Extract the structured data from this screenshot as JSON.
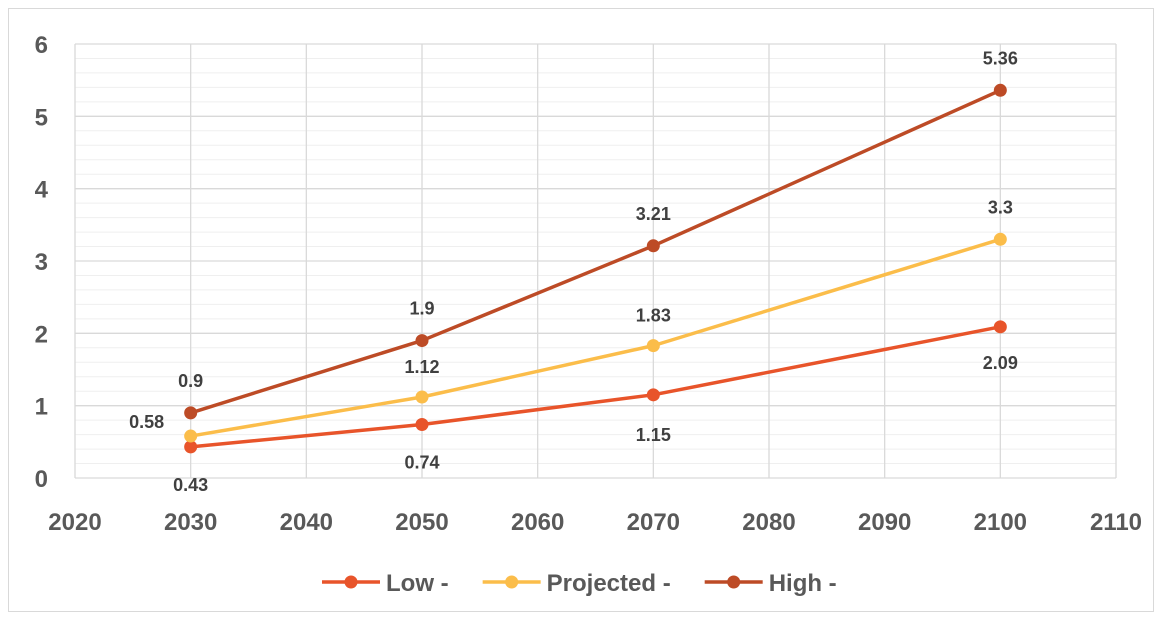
{
  "chart_data": {
    "type": "line",
    "title": "",
    "xlabel": "",
    "ylabel": "",
    "xlim": [
      2020,
      2110
    ],
    "ylim": [
      0,
      6
    ],
    "x_ticks": [
      2020,
      2030,
      2040,
      2050,
      2060,
      2070,
      2080,
      2090,
      2100,
      2110
    ],
    "y_ticks": [
      0,
      1,
      2,
      3,
      4,
      5,
      6
    ],
    "grid": true,
    "minor_grid": true,
    "legend_position": "bottom",
    "x": [
      2030,
      2050,
      2070,
      2100
    ],
    "series": [
      {
        "name": "Low -",
        "color": "#e8542a",
        "values": [
          0.43,
          0.74,
          1.15,
          2.09
        ],
        "labels": [
          "0.43",
          "0.74",
          "1.15",
          "2.09"
        ],
        "label_position": "below"
      },
      {
        "name": "Projected -",
        "color": "#fbbd4a",
        "values": [
          0.58,
          1.12,
          1.83,
          3.3
        ],
        "labels": [
          "0.58",
          "1.12",
          "1.83",
          "3.3"
        ],
        "label_position": "mixed"
      },
      {
        "name": "High -",
        "color": "#bd4b26",
        "values": [
          0.9,
          1.9,
          3.21,
          5.36
        ],
        "labels": [
          "0.9",
          "1.9",
          "3.21",
          "5.36"
        ],
        "label_position": "above"
      }
    ]
  }
}
